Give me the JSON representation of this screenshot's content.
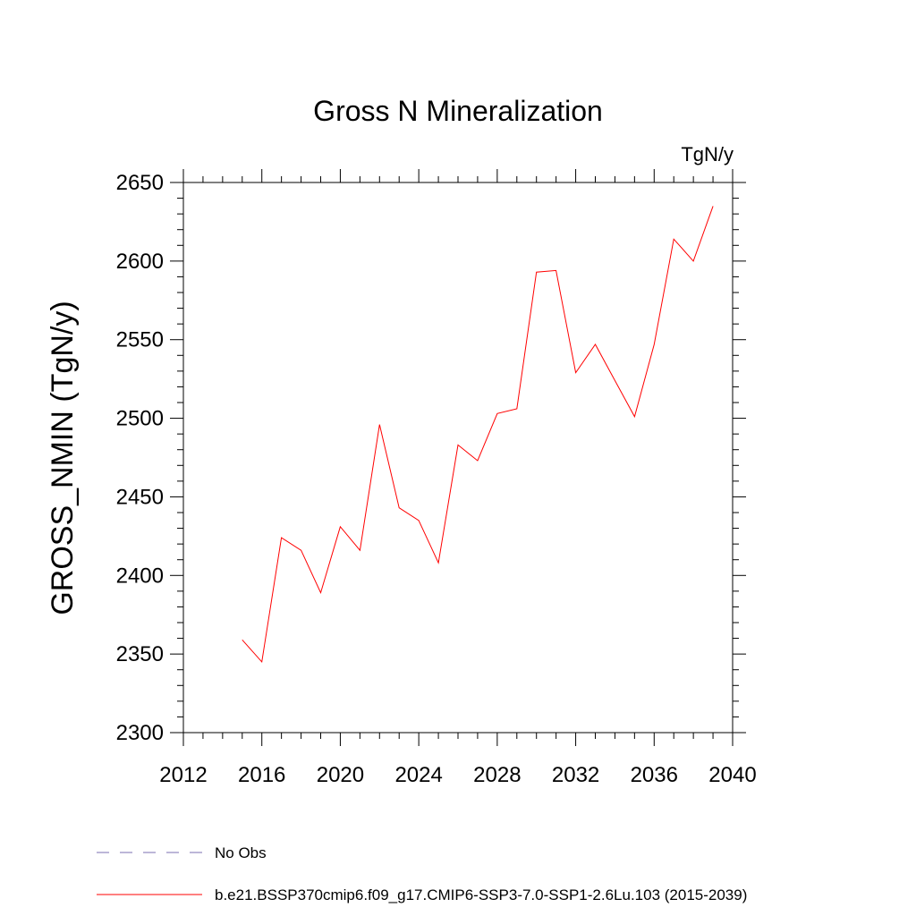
{
  "chart_data": {
    "type": "line",
    "title": "Gross N Mineralization",
    "units": "TgN/y",
    "ylabel": "GROSS_NMIN  (TgN/y)",
    "xlabel": "",
    "xlim": [
      2012,
      2040
    ],
    "ylim": [
      2300,
      2650
    ],
    "xticks": [
      2012,
      2016,
      2020,
      2024,
      2028,
      2032,
      2036,
      2040
    ],
    "yticks": [
      2300,
      2350,
      2400,
      2450,
      2500,
      2550,
      2600,
      2650
    ],
    "grid": false,
    "series": [
      {
        "name": "b.e21.BSSP370cmip6.f09_g17.CMIP6-SSP3-7.0-SSP1-2.6Lu.103 (2015-2039)",
        "color": "#ff0000",
        "x": [
          2015,
          2016,
          2017,
          2018,
          2019,
          2020,
          2021,
          2022,
          2023,
          2024,
          2025,
          2026,
          2027,
          2028,
          2029,
          2030,
          2031,
          2032,
          2033,
          2034,
          2035,
          2036,
          2037,
          2038,
          2039
        ],
        "y": [
          2359,
          2345,
          2424,
          2416,
          2389,
          2431,
          2416,
          2496,
          2443,
          2435,
          2408,
          2483,
          2473,
          2503,
          2506,
          2593,
          2594,
          2529,
          2547,
          2524,
          2501,
          2547,
          2614,
          2600,
          2635
        ]
      }
    ],
    "legend": [
      {
        "label": "No Obs",
        "style": "dashed",
        "color": "#7b6fb0"
      },
      {
        "label": "b.e21.BSSP370cmip6.f09_g17.CMIP6-SSP3-7.0-SSP1-2.6Lu.103 (2015-2039)",
        "style": "solid",
        "color": "#ff0000"
      }
    ],
    "legend_position": "bottom-left"
  }
}
